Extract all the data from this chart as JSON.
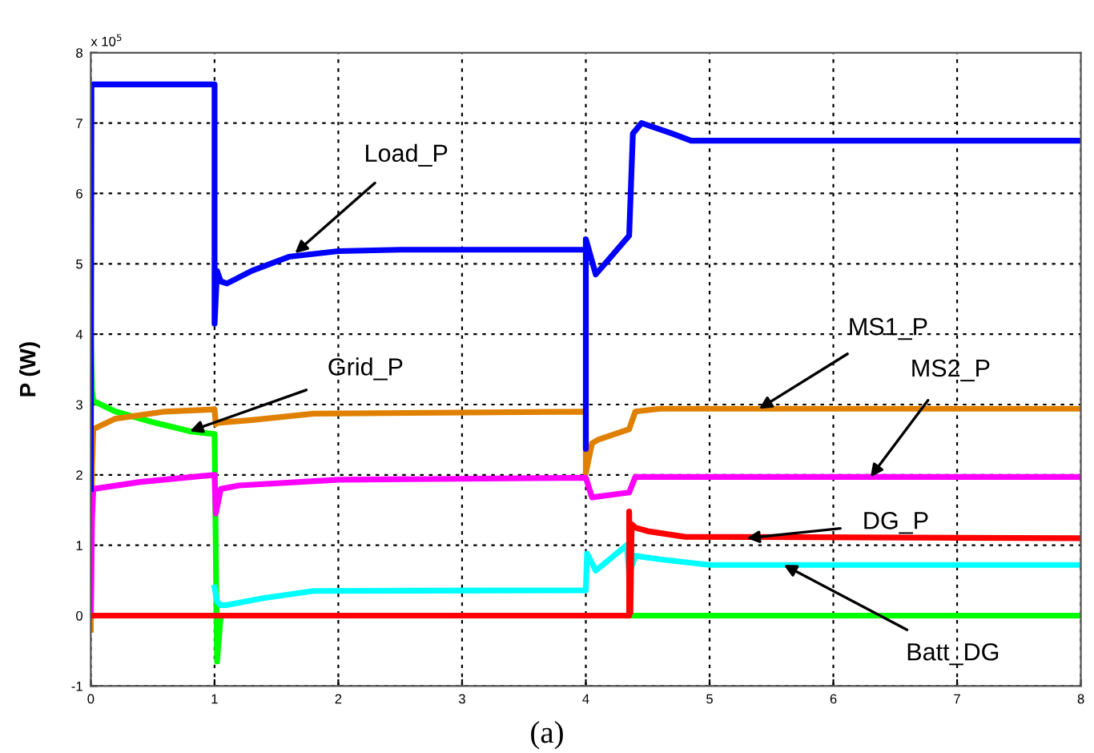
{
  "chart_data": {
    "type": "line",
    "ylabel": "P (W)",
    "xlim": [
      0,
      8
    ],
    "xticks": [
      0,
      1,
      2,
      3,
      4,
      5,
      6,
      7,
      8
    ],
    "ylim": [
      -1,
      8
    ],
    "yticks": [
      -1,
      0,
      1,
      2,
      3,
      4,
      5,
      6,
      7,
      8
    ],
    "grid": true,
    "line_style": "solid",
    "marker": "none",
    "legend": false,
    "series": [
      {
        "color": "#00ff00",
        "x": [
          0,
          0.01,
          0.02,
          0.2,
          0.5,
          0.8,
          1.0,
          1.02,
          1.05,
          8
        ],
        "values": [
          4.0,
          3.2,
          3.05,
          2.9,
          2.75,
          2.62,
          2.58,
          -0.65,
          0,
          0
        ]
      },
      {
        "color": "#e08000",
        "x": [
          0,
          0.01,
          0.02,
          0.2,
          0.6,
          1.0,
          1.01,
          1.02,
          1.3,
          1.8,
          4.0,
          4.0,
          4.05,
          4.1,
          4.35,
          4.4,
          4.6,
          8
        ],
        "values": [
          -0.2,
          2.1,
          2.65,
          2.8,
          2.9,
          2.93,
          2.72,
          2.74,
          2.78,
          2.87,
          2.9,
          2.03,
          2.45,
          2.5,
          2.65,
          2.9,
          2.94,
          2.94
        ]
      },
      {
        "color": "#ff00ff",
        "x": [
          0,
          0.01,
          0.02,
          0.4,
          1.0,
          1.01,
          1.05,
          1.2,
          2.0,
          4.0,
          4.0,
          4.05,
          4.35,
          4.4,
          8
        ],
        "values": [
          0,
          1.4,
          1.8,
          1.9,
          2.0,
          1.45,
          1.8,
          1.85,
          1.93,
          1.96,
          1.96,
          1.68,
          1.75,
          1.97,
          1.97
        ]
      },
      {
        "color": "#00ffff",
        "x": [
          1.0,
          1.02,
          1.05,
          1.1,
          1.4,
          1.8,
          4.0,
          4.0,
          4.01,
          4.08,
          4.33,
          4.35,
          4.4,
          4.6,
          5.0,
          8
        ],
        "values": [
          0.4,
          0.2,
          0.15,
          0.15,
          0.25,
          0.35,
          0.36,
          0.36,
          0.88,
          0.64,
          1.0,
          0.6,
          0.85,
          0.8,
          0.72,
          0.72
        ]
      },
      {
        "color": "#ff0000",
        "x": [
          0,
          1.0,
          4.35,
          4.35,
          4.36,
          4.37,
          4.4,
          4.5,
          4.8,
          8
        ],
        "values": [
          0,
          0,
          0,
          1.48,
          0.04,
          1.3,
          1.25,
          1.2,
          1.12,
          1.1
        ]
      },
      {
        "color": "#0000ff",
        "x": [
          0,
          0.005,
          1.0,
          1.0,
          1.02,
          1.05,
          1.1,
          1.3,
          1.6,
          2.0,
          2.5,
          4.0,
          4.0,
          4.0,
          4.08,
          4.35,
          4.38,
          4.45,
          4.7,
          4.85,
          8
        ],
        "values": [
          1.8,
          7.55,
          7.55,
          4.15,
          4.9,
          4.75,
          4.72,
          4.9,
          5.1,
          5.18,
          5.2,
          5.2,
          2.37,
          5.35,
          4.85,
          5.4,
          6.85,
          7.0,
          6.85,
          6.75,
          6.75
        ]
      }
    ],
    "annotations": [
      "x 10$^{5}$",
      {
        "text": "Load_P",
        "x": 1.65,
        "y": 5.15
      },
      {
        "text": "Grid_P",
        "x": 0.8,
        "y": 2.62
      },
      {
        "text": "MS1_P",
        "x": 5.4,
        "y": 2.94
      },
      {
        "text": "MS2_P",
        "x": 6.3,
        "y": 1.97
      },
      {
        "text": "DG_P",
        "x": 5.3,
        "y": 1.1
      },
      {
        "text": "Batt_DG",
        "x": 5.6,
        "y": 0.72
      },
      "(a)"
    ]
  }
}
